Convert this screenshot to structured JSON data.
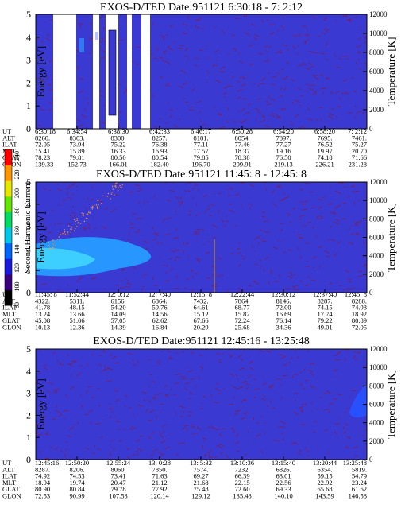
{
  "chart_data": [
    {
      "type": "heatmap",
      "title": "EXOS-D/TED   Date:951121   6:30:18 - 7: 2:12",
      "ylabel": "Energy [eV]",
      "ylabel_right": "Temperature [K]",
      "ylim": [
        0,
        5
      ],
      "yticks": [
        "0",
        "1",
        "2",
        "3",
        "4",
        "5"
      ],
      "ylim_right": [
        0,
        12000
      ],
      "yticks_right": [
        "0",
        "2000",
        "4000",
        "6000",
        "8000",
        "10000",
        "12000"
      ],
      "row_labels": [
        "UT",
        "ALT",
        "ILAT",
        "MLT",
        "GLAT",
        "GLON"
      ],
      "columns": [
        [
          "6:30:18",
          "8260.",
          "72.05",
          "15.41",
          "78.23",
          "139.33"
        ],
        [
          "6:34:54",
          "8303.",
          "73.94",
          "15.89",
          "79.81",
          "152.73"
        ],
        [
          "6:38:30",
          "8300.",
          "75.22",
          "16.33",
          "80.50",
          "166.01"
        ],
        [
          "6:42:33",
          "8257.",
          "76.38",
          "16.93",
          "80.54",
          "182.40"
        ],
        [
          "6:46:17",
          "8181.",
          "77.11",
          "17.57",
          "79.85",
          "196.70"
        ],
        [
          "6:50:28",
          "8054.",
          "77.46",
          "18.37",
          "78.38",
          "209.91"
        ],
        [
          "6:54:20",
          "7897.",
          "77.27",
          "19.16",
          "76.50",
          "219.13"
        ],
        [
          "6:58:20",
          "7695.",
          "76.52",
          "19.97",
          "74.18",
          "226.21"
        ],
        [
          "7: 2:12",
          "7461.",
          "75.27",
          "20.70",
          "71.66",
          "231.28"
        ]
      ]
    },
    {
      "type": "heatmap",
      "title": "EXOS-D/TED   Date:951121   11:45: 8 - 12:45: 8",
      "ylabel": "Energy [eV]",
      "ylabel_right": "Temperature [K]",
      "ylim": [
        0,
        5
      ],
      "yticks": [
        "0",
        "1",
        "2",
        "3",
        "4",
        "5"
      ],
      "ylim_right": [
        0,
        12000
      ],
      "yticks_right": [
        "0",
        "2000",
        "4000",
        "6000",
        "8000",
        "10000",
        "12000"
      ],
      "row_labels": [
        "UT",
        "ALT",
        "ILAT",
        "MLT",
        "GLAT",
        "GLON"
      ],
      "columns": [
        [
          "11:45: 8",
          "4322.",
          "41.78",
          "13.24",
          "45.08",
          "10.13"
        ],
        [
          "11:52:44",
          "5311.",
          "48.15",
          "13.66",
          "51.06",
          "12.36"
        ],
        [
          "12: 0:12",
          "6156.",
          "54.20",
          "14.09",
          "57.05",
          "14.39"
        ],
        [
          "12: 7:40",
          "6864.",
          "59.76",
          "14.56",
          "62.62",
          "16.84"
        ],
        [
          "12:15: 8",
          "7432.",
          "64.61",
          "15.12",
          "67.66",
          "20.29"
        ],
        [
          "12:22:44",
          "7864.",
          "68.77",
          "15.82",
          "72.24",
          "25.68"
        ],
        [
          "12:30:12",
          "8146.",
          "72.00",
          "16.69",
          "76.14",
          "34.36"
        ],
        [
          "12:37:40",
          "8287.",
          "74.15",
          "17.74",
          "79.22",
          "49.01"
        ],
        [
          "12:45: 8",
          "8288.",
          "74.93",
          "18.92",
          "80.89",
          "72.05"
        ]
      ]
    },
    {
      "type": "heatmap",
      "title": "EXOS-D/TED   Date:951121   12:45:16 - 13:25:48",
      "ylabel": "Energy [eV]",
      "ylabel_right": "Temperature [K]",
      "ylim": [
        0,
        5
      ],
      "yticks": [
        "0",
        "1",
        "2",
        "3",
        "4",
        "5"
      ],
      "ylim_right": [
        0,
        12000
      ],
      "yticks_right": [
        "0",
        "2000",
        "4000",
        "6000",
        "8000",
        "10000",
        "12000"
      ],
      "row_labels": [
        "UT",
        "ALT",
        "ILAT",
        "MLT",
        "GLAT",
        "GLON"
      ],
      "columns": [
        [
          "12:45:16",
          "8287.",
          "74.92",
          "18.94",
          "80.90",
          "72.53"
        ],
        [
          "12:50:20",
          "8206.",
          "74.53",
          "19.74",
          "80.84",
          "90.99"
        ],
        [
          "12:55:24",
          "8060.",
          "73.41",
          "20.47",
          "79.78",
          "107.53"
        ],
        [
          "13: 0:28",
          "7850.",
          "71.63",
          "21.12",
          "77.92",
          "120.14"
        ],
        [
          "13: 5:32",
          "7574.",
          "69.27",
          "21.68",
          "75.48",
          "129.12"
        ],
        [
          "13:10:36",
          "7232.",
          "66.39",
          "22.15",
          "72.60",
          "135.48"
        ],
        [
          "13:15:40",
          "6826.",
          "63.01",
          "22.56",
          "69.33",
          "140.10"
        ],
        [
          "13:20:44",
          "6354.",
          "59.15",
          "22.92",
          "65.68",
          "143.59"
        ],
        [
          "13:25:48",
          "5819.",
          "54.79",
          "23.24",
          "61.62",
          "146.58"
        ]
      ]
    }
  ],
  "colorbar": {
    "label": "Second Harmonic Current",
    "ticks": [
      "80",
      "100",
      "120",
      "140",
      "160",
      "180",
      "200",
      "220",
      "240"
    ],
    "colors": [
      "#000000",
      "#3a0080",
      "#1a1adc",
      "#0064ff",
      "#00c8e6",
      "#00dc64",
      "#64e600",
      "#e6e600",
      "#ff9600",
      "#ff0000"
    ]
  },
  "colors": {
    "background": "#3a3ad2",
    "noise": "#7a1c5a",
    "mid": "#2896ff",
    "high": "#3ccfff",
    "gap": "#ffffff"
  }
}
